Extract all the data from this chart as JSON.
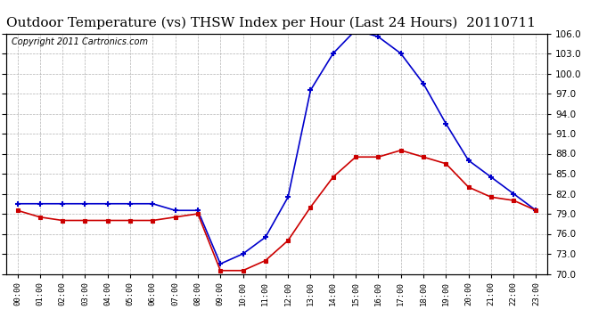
{
  "title": "Outdoor Temperature (vs) THSW Index per Hour (Last 24 Hours)  20110711",
  "copyright_text": "Copyright 2011 Cartronics.com",
  "hours": [
    "00:00",
    "01:00",
    "02:00",
    "03:00",
    "04:00",
    "05:00",
    "06:00",
    "07:00",
    "08:00",
    "09:00",
    "10:00",
    "11:00",
    "12:00",
    "13:00",
    "14:00",
    "15:00",
    "16:00",
    "17:00",
    "18:00",
    "19:00",
    "20:00",
    "21:00",
    "22:00",
    "23:00"
  ],
  "blue_thsw": [
    80.5,
    80.5,
    80.5,
    80.5,
    80.5,
    80.5,
    80.5,
    79.5,
    79.5,
    71.5,
    73.0,
    75.5,
    81.5,
    97.5,
    103.0,
    106.5,
    105.5,
    103.0,
    98.5,
    92.5,
    87.0,
    84.5,
    82.0,
    79.5
  ],
  "red_temp": [
    79.5,
    78.5,
    78.0,
    78.0,
    78.0,
    78.0,
    78.0,
    78.5,
    79.0,
    70.5,
    70.5,
    72.0,
    75.0,
    80.0,
    84.5,
    87.5,
    87.5,
    88.5,
    87.5,
    86.5,
    83.0,
    81.5,
    81.0,
    79.5
  ],
  "ylim": [
    70.0,
    106.0
  ],
  "yticks": [
    70.0,
    73.0,
    76.0,
    79.0,
    82.0,
    85.0,
    88.0,
    91.0,
    94.0,
    97.0,
    100.0,
    103.0,
    106.0
  ],
  "blue_color": "#0000cc",
  "red_color": "#cc0000",
  "bg_color": "#ffffff",
  "grid_color": "#aaaaaa",
  "title_fontsize": 11,
  "copyright_fontsize": 7
}
